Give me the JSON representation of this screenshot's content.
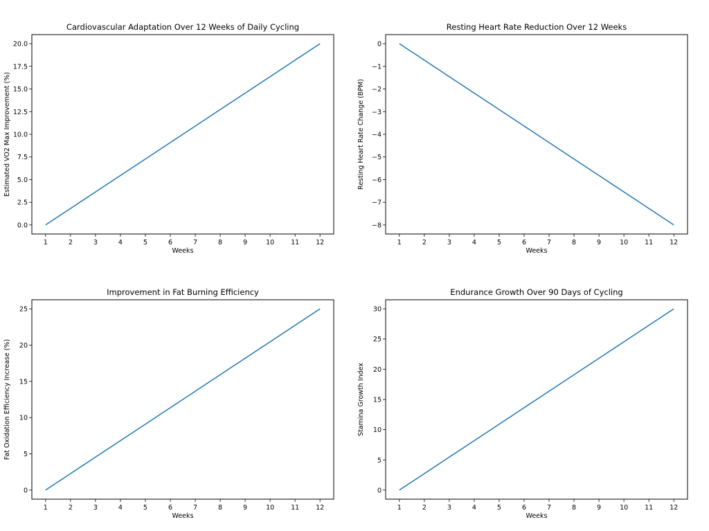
{
  "chart_data": [
    {
      "type": "line",
      "title": "Cardiovascular Adaptation Over 12 Weeks of Daily Cycling",
      "xlabel": "Weeks",
      "ylabel": "Estimated VO2 Max Improvement (%)",
      "x": [
        1,
        2,
        3,
        4,
        5,
        6,
        7,
        8,
        9,
        10,
        11,
        12
      ],
      "series": [
        {
          "values": [
            0,
            1.818,
            3.636,
            5.455,
            7.273,
            9.091,
            10.909,
            12.727,
            14.545,
            16.364,
            18.182,
            20.0
          ],
          "color": "#1f77b4"
        }
      ],
      "xticks": [
        "1",
        "2",
        "3",
        "4",
        "5",
        "6",
        "7",
        "8",
        "9",
        "10",
        "11",
        "12"
      ],
      "yticks": [
        0,
        2.5,
        5,
        7.5,
        10,
        12.5,
        15,
        17.5,
        20
      ],
      "ytick_labels": [
        "0.0",
        "2.5",
        "5.0",
        "7.5",
        "10.0",
        "12.5",
        "15.0",
        "17.5",
        "20.0"
      ],
      "xlim": [
        0.45,
        12.55
      ],
      "ylim": [
        -1.0,
        21.0
      ],
      "grid": false
    },
    {
      "type": "line",
      "title": "Resting Heart Rate Reduction Over 12 Weeks",
      "xlabel": "Weeks",
      "ylabel": "Resting Heart Rate Change (BPM)",
      "x": [
        1,
        2,
        3,
        4,
        5,
        6,
        7,
        8,
        9,
        10,
        11,
        12
      ],
      "series": [
        {
          "values": [
            0,
            -0.727,
            -1.455,
            -2.182,
            -2.909,
            -3.636,
            -4.364,
            -5.091,
            -5.818,
            -6.545,
            -7.273,
            -8.0
          ],
          "color": "#1f77b4"
        }
      ],
      "xticks": [
        "1",
        "2",
        "3",
        "4",
        "5",
        "6",
        "7",
        "8",
        "9",
        "10",
        "11",
        "12"
      ],
      "yticks": [
        0,
        -1,
        -2,
        -3,
        -4,
        -5,
        -6,
        -7,
        -8
      ],
      "ytick_labels": [
        "0",
        "−1",
        "−2",
        "−3",
        "−4",
        "−5",
        "−6",
        "−7",
        "−8"
      ],
      "xlim": [
        0.45,
        12.55
      ],
      "ylim": [
        -8.4,
        0.4
      ],
      "grid": false
    },
    {
      "type": "line",
      "title": "Improvement in Fat Burning Efficiency",
      "xlabel": "Weeks",
      "ylabel": "Fat Oxidation Efficiency Increase (%)",
      "x": [
        1,
        2,
        3,
        4,
        5,
        6,
        7,
        8,
        9,
        10,
        11,
        12
      ],
      "series": [
        {
          "values": [
            0,
            2.273,
            4.545,
            6.818,
            9.091,
            11.364,
            13.636,
            15.909,
            18.182,
            20.455,
            22.727,
            25.0
          ],
          "color": "#1f77b4"
        }
      ],
      "xticks": [
        "1",
        "2",
        "3",
        "4",
        "5",
        "6",
        "7",
        "8",
        "9",
        "10",
        "11",
        "12"
      ],
      "yticks": [
        0,
        5,
        10,
        15,
        20,
        25
      ],
      "ytick_labels": [
        "0",
        "5",
        "10",
        "15",
        "20",
        "25"
      ],
      "xlim": [
        0.45,
        12.55
      ],
      "ylim": [
        -1.25,
        26.25
      ],
      "grid": false
    },
    {
      "type": "line",
      "title": "Endurance Growth Over 90 Days of Cycling",
      "xlabel": "Weeks",
      "ylabel": "Stamina Growth Index",
      "x": [
        1,
        2,
        3,
        4,
        5,
        6,
        7,
        8,
        9,
        10,
        11,
        12
      ],
      "series": [
        {
          "values": [
            0,
            2.727,
            5.455,
            8.182,
            10.909,
            13.636,
            16.364,
            19.091,
            21.818,
            24.545,
            27.273,
            30.0
          ],
          "color": "#1f77b4"
        }
      ],
      "xticks": [
        "1",
        "2",
        "3",
        "4",
        "5",
        "6",
        "7",
        "8",
        "9",
        "10",
        "11",
        "12"
      ],
      "yticks": [
        0,
        5,
        10,
        15,
        20,
        25,
        30
      ],
      "ytick_labels": [
        "0",
        "5",
        "10",
        "15",
        "20",
        "25",
        "30"
      ],
      "xlim": [
        0.45,
        12.55
      ],
      "ylim": [
        -1.5,
        31.5
      ],
      "grid": false
    }
  ]
}
